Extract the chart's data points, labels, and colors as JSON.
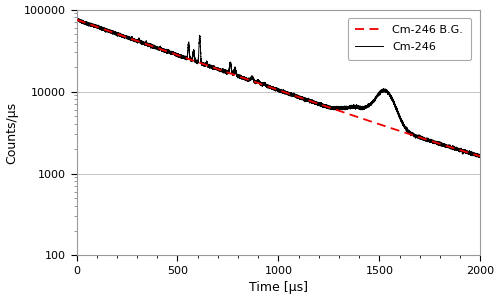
{
  "title": "",
  "xlabel": "Time [μs]",
  "ylabel": "Counts/μs",
  "xlim": [
    0,
    2000
  ],
  "ylim_log": [
    100,
    100000
  ],
  "yticks": [
    100,
    1000,
    10000,
    100000
  ],
  "xticks": [
    0,
    500,
    1000,
    1500,
    2000
  ],
  "bg_color": "#ffffff",
  "legend_labels": [
    "Cm-246 B.G.",
    "Cm-246"
  ],
  "legend_colors": [
    "#ee0000",
    "#000000"
  ],
  "legend_styles": [
    "--",
    "-"
  ],
  "figsize": [
    5.0,
    3.0
  ],
  "dpi": 100
}
